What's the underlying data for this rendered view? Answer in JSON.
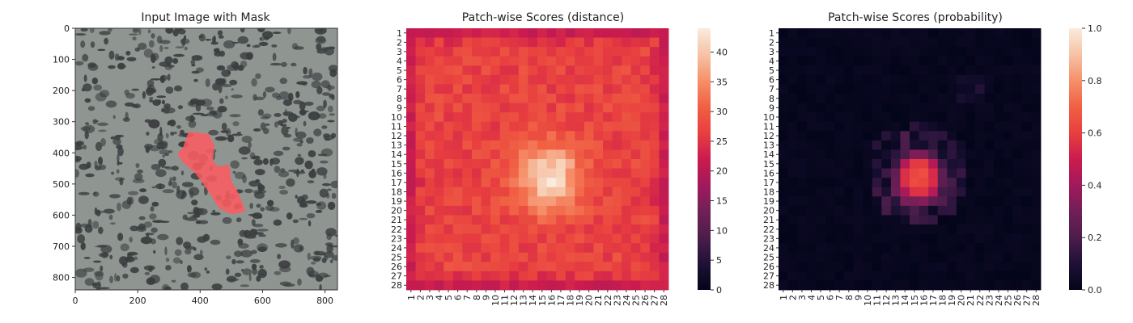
{
  "chart_data": [
    {
      "type": "image",
      "title": "Input Image with Mask",
      "xlim": [
        0,
        840
      ],
      "ylim": [
        840,
        0
      ],
      "xticks": [
        0,
        200,
        400,
        600,
        800
      ],
      "yticks": [
        0,
        100,
        200,
        300,
        400,
        500,
        600,
        700,
        800
      ],
      "mask_color": "#ff5a5f",
      "background_color": "#8f9692",
      "spot_color": "#3a3c3e"
    },
    {
      "type": "heatmap",
      "title": "Patch-wise Scores (distance)",
      "rows": 28,
      "cols": 28,
      "row_labels": [
        "1",
        "2",
        "3",
        "4",
        "5",
        "6",
        "7",
        "8",
        "9",
        "10",
        "11",
        "12",
        "13",
        "14",
        "15",
        "16",
        "17",
        "18",
        "19",
        "20",
        "21",
        "22",
        "23",
        "24",
        "25",
        "26",
        "27",
        "28"
      ],
      "col_labels": [
        "1",
        "2",
        "3",
        "4",
        "5",
        "6",
        "7",
        "8",
        "9",
        "10",
        "11",
        "12",
        "13",
        "14",
        "15",
        "16",
        "17",
        "18",
        "19",
        "20",
        "21",
        "22",
        "23",
        "24",
        "25",
        "26",
        "27",
        "28"
      ],
      "vmin": 0,
      "vmax": 44,
      "colorbar_ticks": [
        0,
        5,
        10,
        15,
        20,
        25,
        30,
        35,
        40
      ],
      "colorbar_tick_labels": [
        "0",
        "5",
        "10",
        "15",
        "20",
        "25",
        "30",
        "35",
        "40"
      ],
      "colormap": "rocket",
      "base_value": 27,
      "edge_value": 22,
      "peak_value": 43,
      "peak_center_row": 16.5,
      "peak_center_col": 15.8
    },
    {
      "type": "heatmap",
      "title": "Patch-wise Scores (probability)",
      "rows": 28,
      "cols": 28,
      "row_labels": [
        "1",
        "2",
        "3",
        "4",
        "5",
        "6",
        "7",
        "8",
        "9",
        "10",
        "11",
        "12",
        "13",
        "14",
        "15",
        "16",
        "17",
        "18",
        "19",
        "20",
        "21",
        "22",
        "23",
        "24",
        "25",
        "26",
        "27",
        "28"
      ],
      "col_labels": [
        "1",
        "2",
        "3",
        "4",
        "5",
        "6",
        "7",
        "8",
        "9",
        "10",
        "11",
        "12",
        "13",
        "14",
        "15",
        "16",
        "17",
        "18",
        "19",
        "20",
        "21",
        "22",
        "23",
        "24",
        "25",
        "26",
        "27",
        "28"
      ],
      "vmin": 0,
      "vmax": 1,
      "colorbar_ticks": [
        0,
        0.2,
        0.4,
        0.6,
        0.8,
        1.0
      ],
      "colorbar_tick_labels": [
        "0.0",
        "0.2",
        "0.4",
        "0.6",
        "0.8",
        "1.0"
      ],
      "colormap": "rocket",
      "peak_value": 0.62,
      "peak_center_row": 16.5,
      "peak_center_col": 15.5
    }
  ]
}
